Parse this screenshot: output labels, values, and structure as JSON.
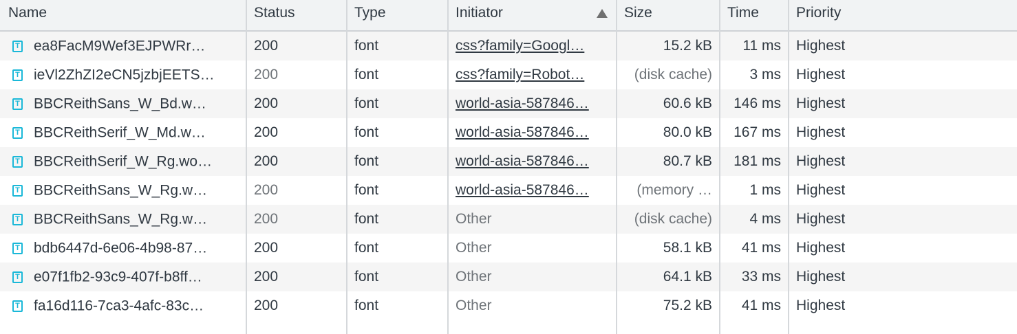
{
  "columns": [
    "Name",
    "Status",
    "Type",
    "Initiator",
    "Size",
    "Time",
    "Priority"
  ],
  "sort": {
    "column": "Initiator",
    "direction": "ascending"
  },
  "rows": [
    {
      "name": "ea8FacM9Wef3EJPWRr…",
      "status": "200",
      "status_muted": false,
      "type": "font",
      "initiator": "css?family=Googl…",
      "initiator_link": true,
      "size": "15.2 kB",
      "size_muted": false,
      "time": "11 ms",
      "priority": "Highest"
    },
    {
      "name": "ieVl2ZhZI2eCN5jzbjEETS…",
      "status": "200",
      "status_muted": true,
      "type": "font",
      "initiator": "css?family=Robot…",
      "initiator_link": true,
      "size": "(disk cache)",
      "size_muted": true,
      "time": "3 ms",
      "priority": "Highest"
    },
    {
      "name": "BBCReithSans_W_Bd.w…",
      "status": "200",
      "status_muted": false,
      "type": "font",
      "initiator": "world-asia-587846…",
      "initiator_link": true,
      "size": "60.6 kB",
      "size_muted": false,
      "time": "146 ms",
      "priority": "Highest"
    },
    {
      "name": "BBCReithSerif_W_Md.w…",
      "status": "200",
      "status_muted": false,
      "type": "font",
      "initiator": "world-asia-587846…",
      "initiator_link": true,
      "size": "80.0 kB",
      "size_muted": false,
      "time": "167 ms",
      "priority": "Highest"
    },
    {
      "name": "BBCReithSerif_W_Rg.wo…",
      "status": "200",
      "status_muted": false,
      "type": "font",
      "initiator": "world-asia-587846…",
      "initiator_link": true,
      "size": "80.7 kB",
      "size_muted": false,
      "time": "181 ms",
      "priority": "Highest"
    },
    {
      "name": "BBCReithSans_W_Rg.w…",
      "status": "200",
      "status_muted": true,
      "type": "font",
      "initiator": "world-asia-587846…",
      "initiator_link": true,
      "size": "(memory …",
      "size_muted": true,
      "time": "1 ms",
      "priority": "Highest"
    },
    {
      "name": "BBCReithSans_W_Rg.w…",
      "status": "200",
      "status_muted": true,
      "type": "font",
      "initiator": "Other",
      "initiator_link": false,
      "size": "(disk cache)",
      "size_muted": true,
      "time": "4 ms",
      "priority": "Highest"
    },
    {
      "name": "bdb6447d-6e06-4b98-87…",
      "status": "200",
      "status_muted": false,
      "type": "font",
      "initiator": "Other",
      "initiator_link": false,
      "size": "58.1 kB",
      "size_muted": false,
      "time": "41 ms",
      "priority": "Highest"
    },
    {
      "name": "e07f1fb2-93c9-407f-b8ff…",
      "status": "200",
      "status_muted": false,
      "type": "font",
      "initiator": "Other",
      "initiator_link": false,
      "size": "64.1 kB",
      "size_muted": false,
      "time": "33 ms",
      "priority": "Highest"
    },
    {
      "name": "fa16d116-7ca3-4afc-83c…",
      "status": "200",
      "status_muted": false,
      "type": "font",
      "initiator": "Other",
      "initiator_link": false,
      "size": "75.2 kB",
      "size_muted": false,
      "time": "41 ms",
      "priority": "Highest"
    }
  ],
  "icon": {
    "name": "font-file-icon",
    "glyph": "T",
    "color": "#1ab8d8"
  }
}
